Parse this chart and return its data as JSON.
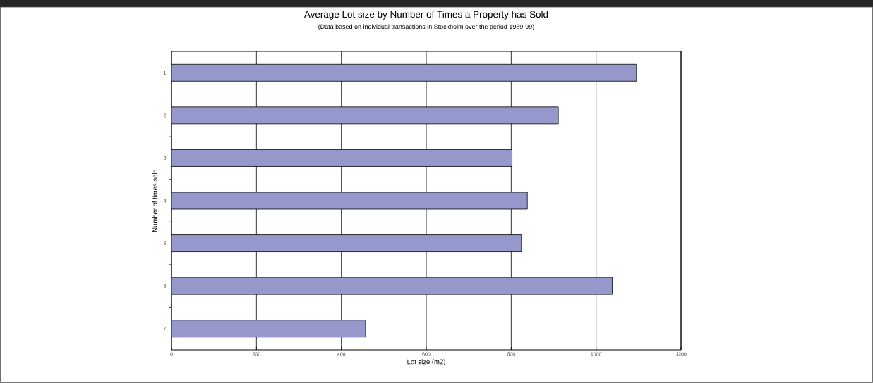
{
  "chart_data": {
    "type": "bar",
    "orientation": "horizontal",
    "title": "Average Lot size by Number of Times a Property has Sold",
    "subtitle": "(Data based on individual transactions in Stockholm over the period 1989-99)",
    "xlabel": "Lot size (m2)",
    "ylabel": "Number of times sold",
    "categories": [
      "1",
      "2",
      "3",
      "4",
      "5",
      "6",
      "7"
    ],
    "values": [
      1095,
      911,
      802,
      838,
      824,
      1038,
      457
    ],
    "color": "#9698cb",
    "xlim": [
      0,
      1200
    ],
    "xticks": [
      0,
      200,
      400,
      600,
      800,
      1000,
      1200
    ],
    "grid": "x"
  }
}
